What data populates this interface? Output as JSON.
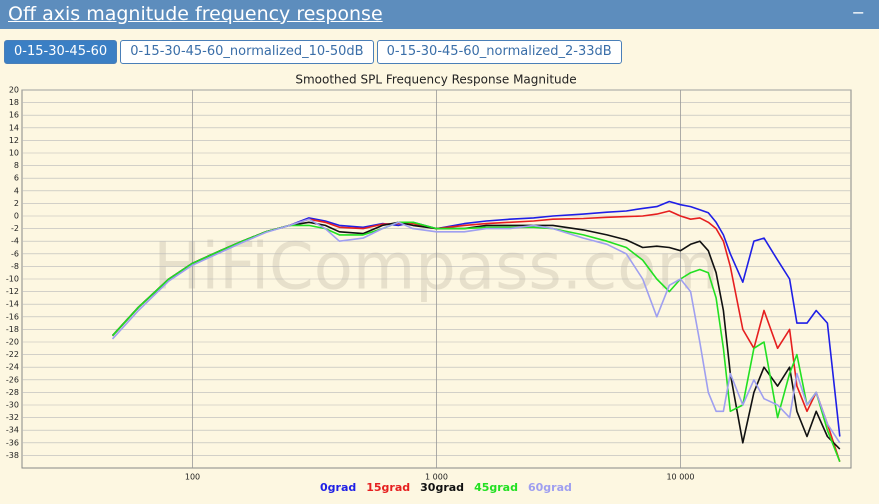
{
  "header": {
    "title": "Off axis magnitude frequency response",
    "collapse": "−"
  },
  "tabs": [
    "0-15-30-45-60",
    "0-15-30-45-60_normalized_10-50dB",
    "0-15-30-45-60_normalized_2-33dB"
  ],
  "chart_data": {
    "type": "line",
    "title": "Smoothed SPL Frequency Response Magnitude",
    "watermark": "HiFiCompass.com",
    "xscale": "log",
    "grid": true,
    "xlim": [
      20,
      50000
    ],
    "xticks": [
      100,
      {
        "value": 1000,
        "label": "1 000"
      },
      {
        "value": 10000,
        "label": "10 000"
      }
    ],
    "ylim": [
      -40,
      20
    ],
    "yticks": [
      20,
      18,
      16,
      14,
      12,
      10,
      8,
      6,
      4,
      2,
      0,
      -2,
      -4,
      -6,
      -8,
      -10,
      -12,
      -14,
      -16,
      -18,
      -20,
      -22,
      -24,
      -26,
      -28,
      -30,
      -32,
      -34,
      -36,
      -38
    ],
    "x": [
      47,
      60,
      80,
      100,
      130,
      160,
      200,
      250,
      300,
      350,
      400,
      500,
      600,
      700,
      800,
      1000,
      1300,
      1600,
      2000,
      2500,
      3000,
      4000,
      5000,
      6000,
      7000,
      8000,
      9000,
      10000,
      11000,
      12000,
      13000,
      14000,
      15000,
      16000,
      18000,
      20000,
      22000,
      25000,
      28000,
      30000,
      33000,
      36000,
      40000,
      45000
    ],
    "series": [
      {
        "name": "0grad",
        "color": "#1f1fe6",
        "values": [
          -19,
          -14.5,
          -10,
          -7.5,
          -5.5,
          -4,
          -2.5,
          -1.5,
          -0.3,
          -0.8,
          -1.5,
          -1.8,
          -1.2,
          -1.5,
          -1,
          -2,
          -1.2,
          -0.8,
          -0.5,
          -0.3,
          0,
          0.3,
          0.6,
          0.8,
          1.2,
          1.5,
          2.3,
          1.8,
          1.5,
          1,
          0.5,
          -1,
          -3,
          -6,
          -10.5,
          -4,
          -3.5,
          -7,
          -10,
          -17,
          -17,
          -15,
          -17,
          -35
        ]
      },
      {
        "name": "15grad",
        "color": "#e61f1f",
        "values": [
          -19,
          -14.5,
          -10,
          -7.5,
          -5.5,
          -4,
          -2.5,
          -1.5,
          -0.5,
          -1,
          -1.8,
          -2,
          -1.3,
          -1.2,
          -1.2,
          -2,
          -1.5,
          -1.2,
          -1,
          -0.8,
          -0.5,
          -0.4,
          -0.2,
          -0.1,
          0,
          0.3,
          0.8,
          0,
          -0.5,
          -0.3,
          -1,
          -2,
          -4,
          -8,
          -18,
          -21,
          -15,
          -21,
          -18,
          -27,
          -31,
          -28,
          -33,
          -39
        ]
      },
      {
        "name": "30grad",
        "color": "#111111",
        "values": [
          -19,
          -14.5,
          -10,
          -7.5,
          -5.5,
          -4,
          -2.5,
          -1.5,
          -1,
          -1.5,
          -2.5,
          -2.8,
          -1.5,
          -1,
          -1.5,
          -2,
          -2,
          -1.5,
          -1.5,
          -1.5,
          -1.5,
          -2.2,
          -3,
          -3.8,
          -5,
          -4.8,
          -5,
          -5.5,
          -4.5,
          -4,
          -5.5,
          -9,
          -15,
          -25,
          -36,
          -28,
          -24,
          -27,
          -24,
          -31,
          -35,
          -31,
          -35,
          -37
        ]
      },
      {
        "name": "45grad",
        "color": "#22e022",
        "values": [
          -19,
          -14.5,
          -10,
          -7.5,
          -5.5,
          -4,
          -2.5,
          -1.5,
          -1.5,
          -2,
          -3,
          -3,
          -2,
          -1,
          -1,
          -2,
          -2,
          -1.8,
          -1.8,
          -1.8,
          -2,
          -3,
          -4,
          -5,
          -7,
          -10,
          -12,
          -10,
          -9,
          -8.5,
          -9,
          -13,
          -21,
          -31,
          -30,
          -21,
          -20,
          -32,
          -25,
          -22,
          -30,
          -28,
          -34,
          -39
        ]
      },
      {
        "name": "60grad",
        "color": "#9f9ff0",
        "values": [
          -19.5,
          -15,
          -10.3,
          -7.8,
          -5.8,
          -4.2,
          -2.6,
          -1.5,
          -0.5,
          -2,
          -4,
          -3.5,
          -2,
          -1,
          -2,
          -2.5,
          -2.5,
          -2,
          -2,
          -1.5,
          -2,
          -3.5,
          -4.5,
          -6,
          -10,
          -16,
          -11,
          -10,
          -12,
          -20,
          -28,
          -31,
          -31,
          -25,
          -30,
          -26,
          -29,
          -30,
          -32,
          -25,
          -30,
          -28,
          -33,
          -36
        ]
      }
    ]
  }
}
